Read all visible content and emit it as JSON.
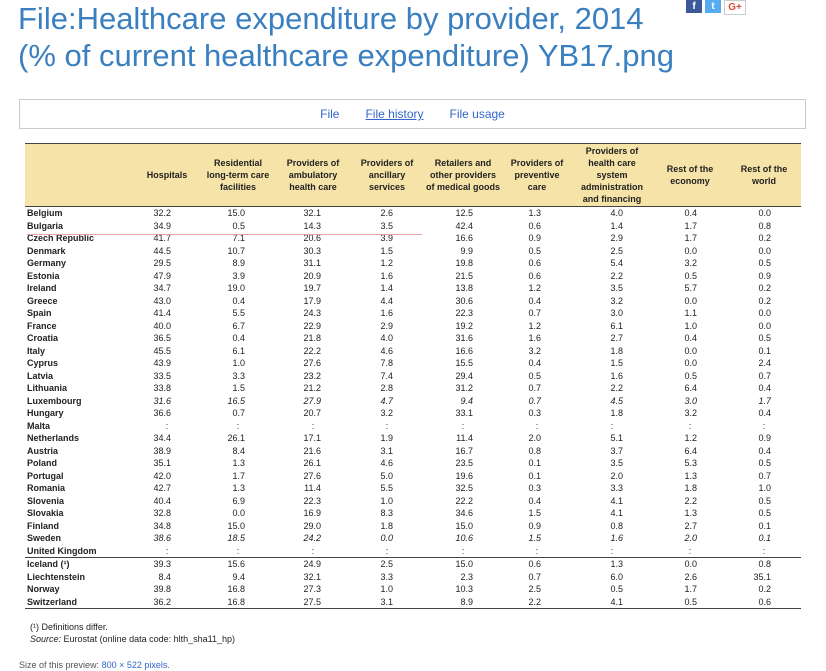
{
  "page": {
    "title_line1": "File:Healthcare expenditure by provider, 2014",
    "title_line2": "(% of current healthcare expenditure) YB17.png"
  },
  "social": [
    "f",
    "t",
    "G+"
  ],
  "tabs": [
    "File",
    "File history",
    "File usage"
  ],
  "table": {
    "headers": [
      "",
      "Hospitals",
      "Residential long-term care facilities",
      "Providers of ambulatory health care",
      "Providers of ancillary services",
      "Retailers and other providers of medical goods",
      "Providers of preventive care",
      "Providers of health care system administration and financing",
      "Rest of the economy",
      "Rest of the world"
    ],
    "groups": [
      [
        {
          "country": "Belgium",
          "values": [
            "32.2",
            "15.0",
            "32.1",
            "2.6",
            "12.5",
            "1.3",
            "4.0",
            "0.4",
            "0.0"
          ]
        },
        {
          "country": "Bulgaria",
          "values": [
            "34.9",
            "0.5",
            "14.3",
            "3.5",
            "42.4",
            "0.6",
            "1.4",
            "1.7",
            "0.8"
          ]
        },
        {
          "country": "Czech Republic",
          "values": [
            "41.7",
            "7.1",
            "20.6",
            "3.9",
            "16.6",
            "0.9",
            "2.9",
            "1.7",
            "0.2"
          ]
        },
        {
          "country": "Denmark",
          "values": [
            "44.5",
            "10.7",
            "30.3",
            "1.5",
            "9.9",
            "0.5",
            "2.5",
            "0.0",
            "0.0"
          ]
        },
        {
          "country": "Germany",
          "values": [
            "29.5",
            "8.9",
            "31.1",
            "1.2",
            "19.8",
            "0.6",
            "5.4",
            "3.2",
            "0.5"
          ]
        },
        {
          "country": "Estonia",
          "values": [
            "47.9",
            "3.9",
            "20.9",
            "1.6",
            "21.5",
            "0.6",
            "2.2",
            "0.5",
            "0.9"
          ]
        },
        {
          "country": "Ireland",
          "values": [
            "34.7",
            "19.0",
            "19.7",
            "1.4",
            "13.8",
            "1.2",
            "3.5",
            "5.7",
            "0.2"
          ]
        },
        {
          "country": "Greece",
          "values": [
            "43.0",
            "0.4",
            "17.9",
            "4.4",
            "30.6",
            "0.4",
            "3.2",
            "0.0",
            "0.2"
          ]
        },
        {
          "country": "Spain",
          "values": [
            "41.4",
            "5.5",
            "24.3",
            "1.6",
            "22.3",
            "0.7",
            "3.0",
            "1.1",
            "0.0"
          ]
        },
        {
          "country": "France",
          "values": [
            "40.0",
            "6.7",
            "22.9",
            "2.9",
            "19.2",
            "1.2",
            "6.1",
            "1.0",
            "0.0"
          ]
        },
        {
          "country": "Croatia",
          "values": [
            "36.5",
            "0.4",
            "21.8",
            "4.0",
            "31.6",
            "1.6",
            "2.7",
            "0.4",
            "0.5"
          ]
        },
        {
          "country": "Italy",
          "values": [
            "45.5",
            "6.1",
            "22.2",
            "4.6",
            "16.6",
            "3.2",
            "1.8",
            "0.0",
            "0.1"
          ]
        },
        {
          "country": "Cyprus",
          "values": [
            "43.9",
            "1.0",
            "27.6",
            "7.8",
            "15.5",
            "0.4",
            "1.5",
            "0.0",
            "2.4"
          ]
        },
        {
          "country": "Latvia",
          "values": [
            "33.5",
            "3.3",
            "23.2",
            "7.4",
            "29.4",
            "0.5",
            "1.6",
            "0.5",
            "0.7"
          ]
        },
        {
          "country": "Lithuania",
          "values": [
            "33.8",
            "1.5",
            "21.2",
            "2.8",
            "31.2",
            "0.7",
            "2.2",
            "6.4",
            "0.4"
          ]
        },
        {
          "country": "Luxembourg",
          "italic": true,
          "values": [
            "31.6",
            "16.5",
            "27.9",
            "4.7",
            "9.4",
            "0.7",
            "4.5",
            "3.0",
            "1.7"
          ]
        },
        {
          "country": "Hungary",
          "values": [
            "36.6",
            "0.7",
            "20.7",
            "3.2",
            "33.1",
            "0.3",
            "1.8",
            "3.2",
            "0.4"
          ]
        },
        {
          "country": "Malta",
          "values": [
            ":",
            ":",
            ":",
            ":",
            ":",
            ":",
            ":",
            ":",
            ":"
          ]
        },
        {
          "country": "Netherlands",
          "values": [
            "34.4",
            "26.1",
            "17.1",
            "1.9",
            "11.4",
            "2.0",
            "5.1",
            "1.2",
            "0.9"
          ]
        },
        {
          "country": "Austria",
          "values": [
            "38.9",
            "8.4",
            "21.6",
            "3.1",
            "16.7",
            "0.8",
            "3.7",
            "6.4",
            "0.4"
          ]
        },
        {
          "country": "Poland",
          "values": [
            "35.1",
            "1.3",
            "26.1",
            "4.6",
            "23.5",
            "0.1",
            "3.5",
            "5.3",
            "0.5"
          ]
        },
        {
          "country": "Portugal",
          "values": [
            "42.0",
            "1.7",
            "27.6",
            "5.0",
            "19.6",
            "0.1",
            "2.0",
            "1.3",
            "0.7"
          ]
        },
        {
          "country": "Romania",
          "values": [
            "42.7",
            "1.3",
            "11.4",
            "5.5",
            "32.5",
            "0.3",
            "3.3",
            "1.8",
            "1.0"
          ]
        },
        {
          "country": "Slovenia",
          "values": [
            "40.4",
            "6.9",
            "22.3",
            "1.0",
            "22.2",
            "0.4",
            "4.1",
            "2.2",
            "0.5"
          ]
        },
        {
          "country": "Slovakia",
          "values": [
            "32.8",
            "0.0",
            "16.9",
            "8.3",
            "34.6",
            "1.5",
            "4.1",
            "1.3",
            "0.5"
          ]
        },
        {
          "country": "Finland",
          "values": [
            "34.8",
            "15.0",
            "29.0",
            "1.8",
            "15.0",
            "0.9",
            "0.8",
            "2.7",
            "0.1"
          ]
        },
        {
          "country": "Sweden",
          "italic": true,
          "values": [
            "38.6",
            "18.5",
            "24.2",
            "0.0",
            "10.6",
            "1.5",
            "1.6",
            "2.0",
            "0.1"
          ]
        },
        {
          "country": "United Kingdom",
          "values": [
            ":",
            ":",
            ":",
            ":",
            ":",
            ":",
            ":",
            ":",
            ":"
          ]
        }
      ],
      [
        {
          "country": "Iceland (¹)",
          "values": [
            "39.3",
            "15.6",
            "24.9",
            "2.5",
            "15.0",
            "0.6",
            "1.3",
            "0.0",
            "0.8"
          ]
        },
        {
          "country": "Liechtenstein",
          "values": [
            "8.4",
            "9.4",
            "32.1",
            "3.3",
            "2.3",
            "0.7",
            "6.0",
            "2.6",
            "35.1"
          ]
        },
        {
          "country": "Norway",
          "values": [
            "39.8",
            "16.8",
            "27.3",
            "1.0",
            "10.3",
            "2.5",
            "0.5",
            "1.7",
            "0.2"
          ]
        },
        {
          "country": "Switzerland",
          "values": [
            "36.2",
            "16.8",
            "27.5",
            "3.1",
            "8.9",
            "2.2",
            "4.1",
            "0.5",
            "0.6"
          ]
        }
      ]
    ]
  },
  "footnotes": {
    "definitions": "(¹) Definitions differ.",
    "source_label": "Source:",
    "source_text": "Eurostat (online data code: hlth_sha11_hp)"
  },
  "preview": {
    "label": "Size of this preview:",
    "link": "800 × 522 pixels",
    "suffix": "."
  }
}
